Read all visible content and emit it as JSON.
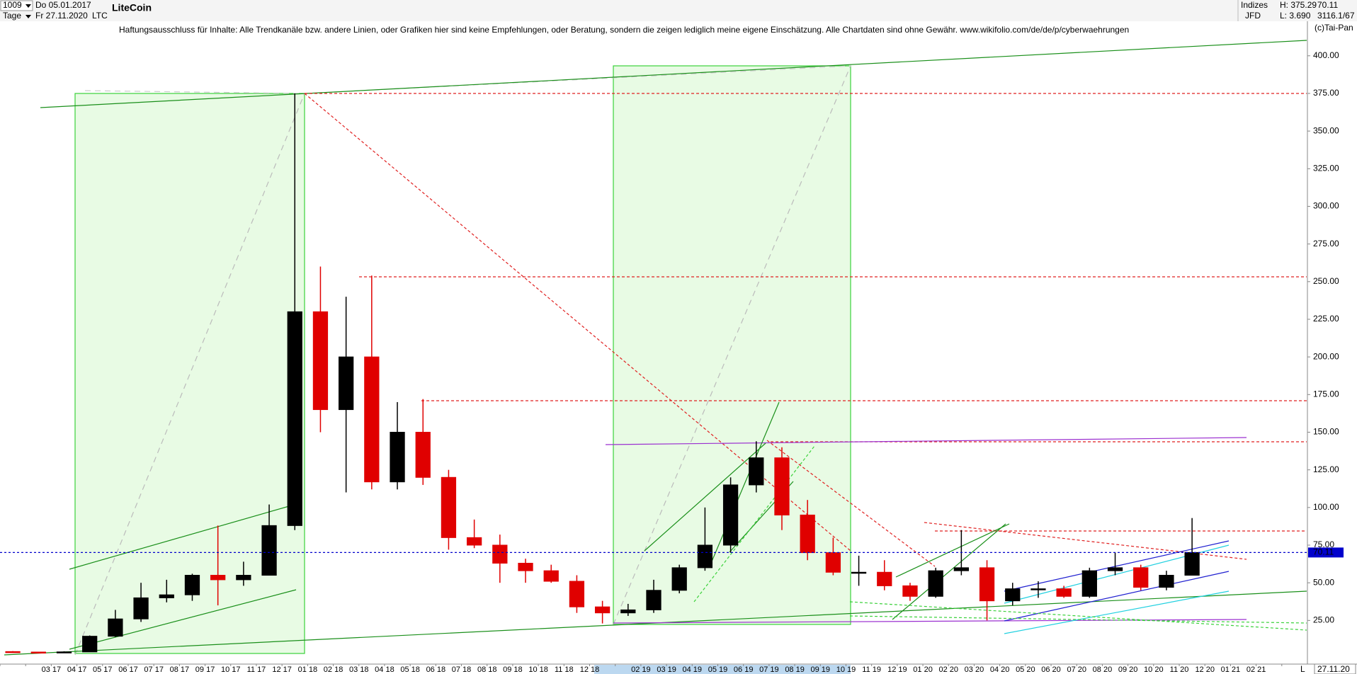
{
  "header": {
    "selector": "1009",
    "period": "Tage",
    "date_from": "Do 05.01.2017",
    "date_to": "Fr 27.11.2020",
    "symbol": "LTC",
    "group": "Indizes",
    "broker": "JFD",
    "high": "H: 375.29",
    "low": "L: 3.690",
    "ratio": "3116.1/67",
    "copyright": "(c)Tai-Pan"
  },
  "disclaimer": "Haftungsausschluss für Inhalte: Alle Trendkanäle bzw. andere Linien, oder Grafiken hier sind keine Empfehlungen, oder Beratung, sondern die zeigen lediglich meine eigene Einschätzung. Alle Chartdaten sind ohne Gewähr.  www.wikifolio.com/de/de/p/cyberwaehrungen",
  "footer": {
    "date": "27.11.20",
    "scale": "L"
  },
  "chart_data": {
    "type": "candlestick",
    "title": "LiteCoin",
    "categories": [
      null,
      null,
      "03 17",
      "04 17",
      "05 17",
      "06 17",
      "07 17",
      "08 17",
      "09 17",
      "10 17",
      "11 17",
      "12 17",
      "01 18",
      "02 18",
      "03 18",
      "04 18",
      "05 18",
      "06 18",
      "07 18",
      "08 18",
      "09 18",
      "10 18",
      "11 18",
      "12 18",
      null,
      "02 19",
      "03 19",
      "04 19",
      "05 19",
      "06 19",
      "07 19",
      "08 19",
      "09 19",
      "10 19",
      "11 19",
      "12 19",
      "01 20",
      "02 20",
      "03 20",
      "04 20",
      "05 20",
      "06 20",
      "07 20",
      "08 20",
      "09 20",
      "10 20",
      "11 20",
      "12 20",
      "01 21",
      "02 21",
      null
    ],
    "open": [
      4.3,
      4.0,
      3.8,
      4.1,
      14.5,
      26,
      40,
      42,
      55,
      52,
      55,
      88,
      230,
      165,
      200,
      117,
      150,
      120,
      80,
      75,
      63,
      58,
      51,
      34,
      30,
      32,
      45,
      60,
      75,
      115,
      133,
      95,
      70,
      57,
      57,
      48,
      41,
      58,
      60,
      38,
      46,
      46,
      41,
      58,
      60,
      47,
      55,
      null,
      null,
      null,
      null
    ],
    "high": [
      4.6,
      4.1,
      4.5,
      15,
      32,
      50,
      52,
      56,
      88,
      64,
      102,
      375,
      260,
      240,
      254,
      170,
      172,
      125,
      92,
      82,
      66,
      62,
      55,
      38,
      36,
      52,
      62,
      100,
      120,
      144,
      140,
      105,
      80,
      68,
      65,
      50,
      60,
      85,
      65,
      50,
      51,
      48,
      60,
      70,
      62,
      58,
      93,
      null,
      null,
      null,
      null
    ],
    "low": [
      3.7,
      3.7,
      3.7,
      4.0,
      14,
      24,
      37,
      38,
      35,
      48,
      55,
      85,
      150,
      110,
      112,
      112,
      115,
      72,
      73,
      50,
      50,
      50,
      30,
      23,
      28,
      30,
      43,
      58,
      70,
      110,
      85,
      65,
      55,
      48,
      45,
      38,
      40,
      55,
      25,
      35,
      40,
      40,
      40,
      55,
      45,
      45,
      55,
      null,
      null,
      null,
      null
    ],
    "close": [
      4.0,
      3.8,
      4.1,
      14.5,
      26,
      40,
      42,
      55,
      52,
      55,
      88,
      230,
      165,
      200,
      117,
      150,
      120,
      80,
      75,
      63,
      58,
      51,
      34,
      30,
      32,
      45,
      60,
      75,
      115,
      133,
      95,
      70,
      57,
      57,
      48,
      41,
      58,
      60,
      38,
      46,
      46,
      41,
      58,
      60,
      47,
      55,
      70.11,
      null,
      null,
      null,
      null
    ],
    "up_color": "#000000",
    "down_color": "#e00000",
    "last_value": 70.11,
    "last_color": "#0000cc",
    "ylim": [
      -4,
      422
    ],
    "yticks": [
      {
        "value": 25,
        "label": "25.00"
      },
      {
        "value": 50,
        "label": "50.00"
      },
      {
        "value": 75,
        "label": "75.00"
      },
      {
        "value": 100,
        "label": "100.00"
      },
      {
        "value": 125,
        "label": "125.00"
      },
      {
        "value": 150,
        "label": "150.00"
      },
      {
        "value": 175,
        "label": "175.00"
      },
      {
        "value": 200,
        "label": "200.00"
      },
      {
        "value": 225,
        "label": "225.00"
      },
      {
        "value": 250,
        "label": "250.00"
      },
      {
        "value": 275,
        "label": "275.00"
      },
      {
        "value": 300,
        "label": "300.00"
      },
      {
        "value": 325,
        "label": "325.00"
      },
      {
        "value": 350,
        "label": "350.00"
      },
      {
        "value": 375,
        "label": "375.00"
      },
      {
        "value": 400,
        "label": "400.00"
      }
    ],
    "grid": false
  }
}
